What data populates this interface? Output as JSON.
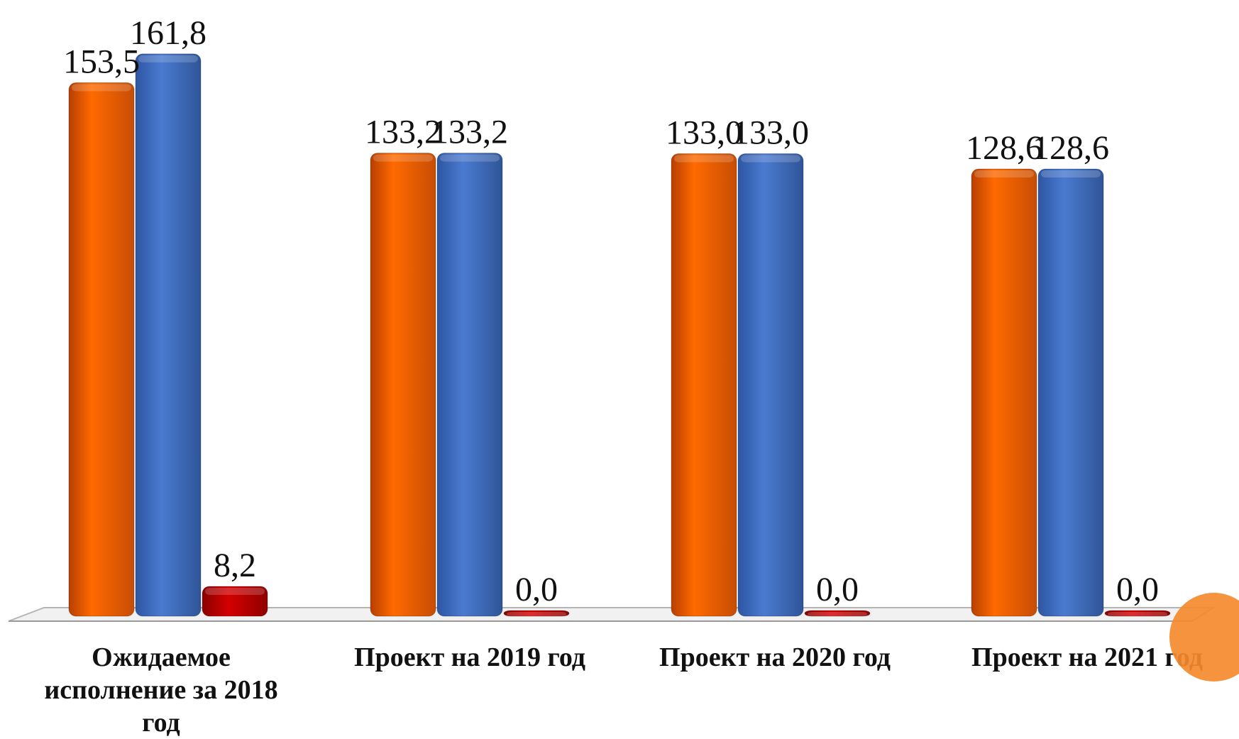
{
  "chart_data": {
    "type": "bar",
    "categories": [
      [
        "Ожидаемое",
        "исполнение за 2018",
        "год"
      ],
      [
        "Проект на 2019 год"
      ],
      [
        "Проект на 2020 год"
      ],
      [
        "Проект на 2021 год"
      ]
    ],
    "series": [
      {
        "values": [
          153.5,
          133.2,
          133.0,
          128.6
        ],
        "labels": [
          "153,5",
          "133,2",
          "133,0",
          "128,6"
        ],
        "color": "#ff6a00"
      },
      {
        "values": [
          161.8,
          133.2,
          133.0,
          128.6
        ],
        "labels": [
          "161,8",
          "133,2",
          "133,0",
          "128,6"
        ],
        "color": "#4472c4"
      },
      {
        "values": [
          8.2,
          0.0,
          0.0,
          0.0
        ],
        "labels": [
          "8,2",
          "0,0",
          "0,0",
          "0,0"
        ],
        "color": "#c00000"
      }
    ],
    "ylim": [
      0,
      170
    ],
    "grid": false,
    "legend": "none",
    "title": "",
    "xlabel": "",
    "ylabel": ""
  }
}
